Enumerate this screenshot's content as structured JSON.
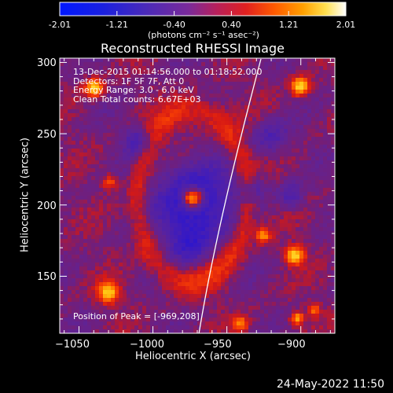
{
  "colorbar": {
    "tick_labels": [
      "-2.01",
      "-1.21",
      "-0.40",
      "0.40",
      "1.21",
      "2.01"
    ],
    "unit_label": "(photons cm⁻² s⁻¹ asec⁻²)",
    "min": -2.01,
    "max": 2.01
  },
  "plot": {
    "title": "Reconstructed RHESSI Image",
    "info_lines": [
      "13-Dec-2015 01:14:56.000 to 01:18:52.000",
      "Detectors: 1F 5F 7F, Att 0",
      "Energy Range: 3.0 - 6.0 keV",
      "Clean     Total counts: 6.67E+03"
    ],
    "peak_text": "Position of Peak = [-969,208]",
    "x_axis": {
      "label": "Heliocentric X (arcsec)",
      "ticks": [
        "−1050",
        "−1000",
        "−950",
        "−900"
      ],
      "range": [
        -1063,
        -877
      ]
    },
    "y_axis": {
      "label": "Heliocentric Y (arcsec)",
      "ticks": [
        "150",
        "200",
        "250",
        "300"
      ],
      "range": [
        110,
        303
      ]
    },
    "peak": {
      "x": -969,
      "y": 208
    },
    "limb_color": "#ffffff"
  },
  "footer": {
    "date": "24-May-2022 11:50"
  }
}
